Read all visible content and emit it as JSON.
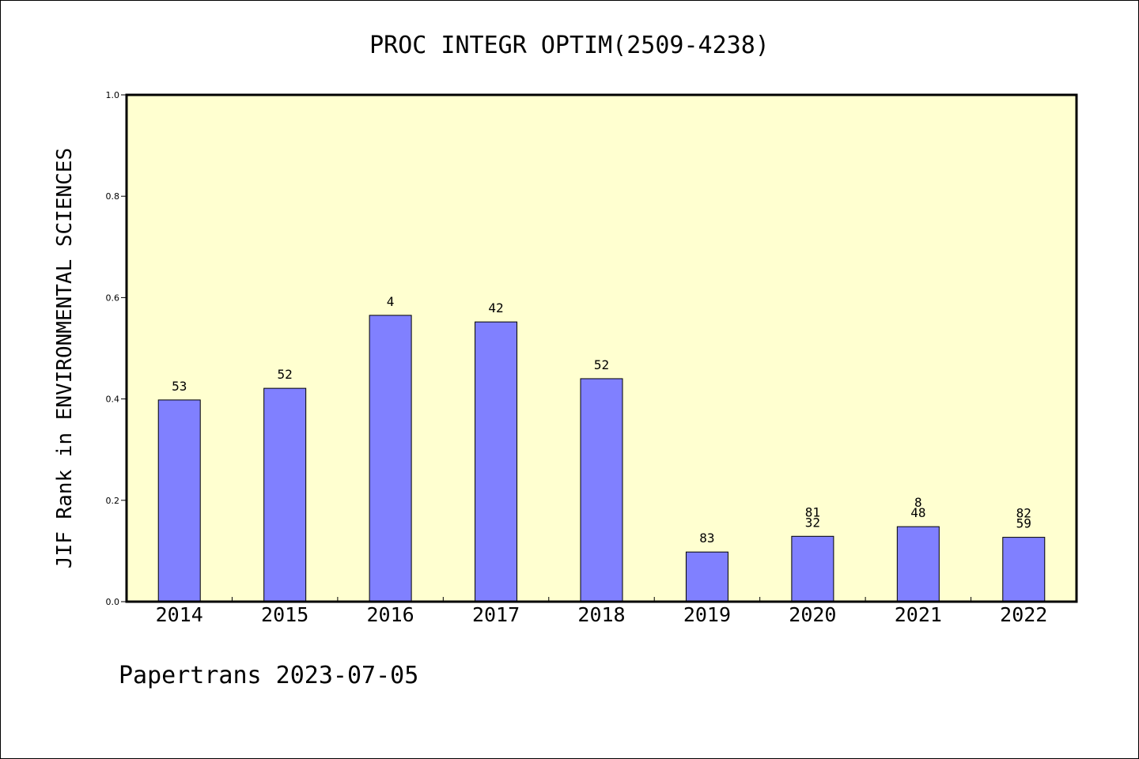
{
  "chart_data": {
    "type": "bar",
    "title": "PROC INTEGR OPTIM(2509-4238)",
    "ylabel": "JIF Rank in ENVIRONMENTAL SCIENCES",
    "xlabel": "",
    "categories": [
      "2014",
      "2015",
      "2016",
      "2017",
      "2018",
      "2019",
      "2020",
      "2021",
      "2022"
    ],
    "values": [
      0.398,
      0.421,
      0.565,
      0.552,
      0.44,
      0.098,
      0.129,
      0.148,
      0.127
    ],
    "bar_labels": [
      [
        "53"
      ],
      [
        "52"
      ],
      [
        "4"
      ],
      [
        "42"
      ],
      [
        "52"
      ],
      [
        "83"
      ],
      [
        "81",
        "32"
      ],
      [
        "8",
        "48"
      ],
      [
        "82",
        "59"
      ]
    ],
    "ylim": [
      0,
      1.0
    ],
    "yticks": [
      "0.0",
      "0.2",
      "0.4",
      "0.6",
      "0.8",
      "1.0"
    ],
    "grid": false,
    "legend": "none",
    "bar_color": "#8080ff",
    "plot_background": "#ffffd0"
  },
  "footer": {
    "text": "Papertrans 2023-07-05"
  }
}
